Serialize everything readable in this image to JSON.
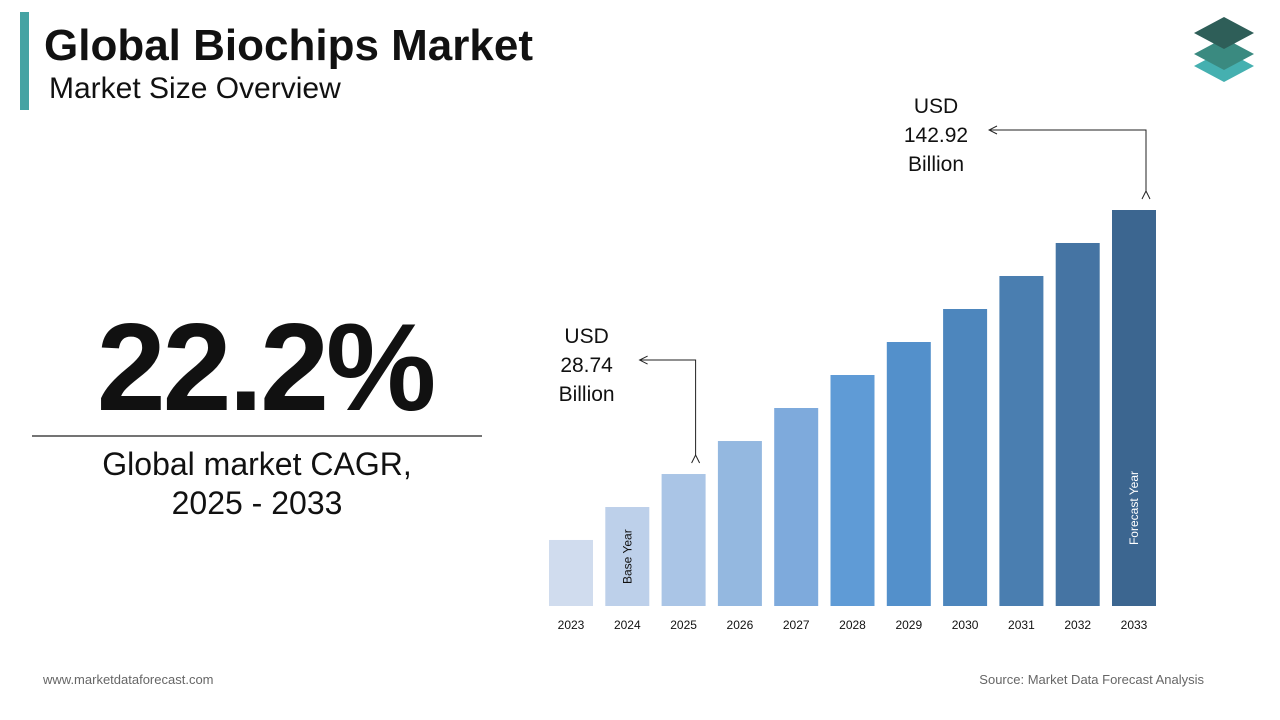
{
  "header": {
    "title": "Global Biochips Market",
    "subtitle": "Market Size Overview"
  },
  "highlight": {
    "figure": "22.2%",
    "caption_lines": [
      "Global market CAGR,",
      "2025 - 2033"
    ]
  },
  "chart_data": {
    "type": "bar",
    "categories": [
      "2023",
      "2024",
      "2025",
      "2026",
      "2027",
      "2028",
      "2029",
      "2030",
      "2031",
      "2032",
      "2033"
    ],
    "values": [
      19.25,
      23.52,
      28.74,
      35.12,
      42.92,
      52.45,
      64.09,
      78.32,
      95.71,
      116.96,
      142.92
    ],
    "value_labels": [
      null,
      null,
      "USD 28.74 Billion",
      null,
      null,
      null,
      null,
      null,
      null,
      null,
      "USD 142.92 Billion"
    ],
    "bar_labels": [
      null,
      "Base Year",
      null,
      null,
      null,
      null,
      null,
      null,
      null,
      null,
      "Forecast Year"
    ],
    "colors": [
      "#d0dcee",
      "#bdd0ea",
      "#aac5e6",
      "#94b8e0",
      "#7eaadc",
      "#5f9bd6",
      "#5390cb",
      "#4d86bd",
      "#4a7eb0",
      "#4574a3",
      "#3c6690"
    ],
    "log_scale": true,
    "ylim": [
      12.89,
      142.92
    ]
  },
  "footer": {
    "website": "www.marketdataforecast.com",
    "source": "Source: Market Data Forecast Analysis"
  }
}
